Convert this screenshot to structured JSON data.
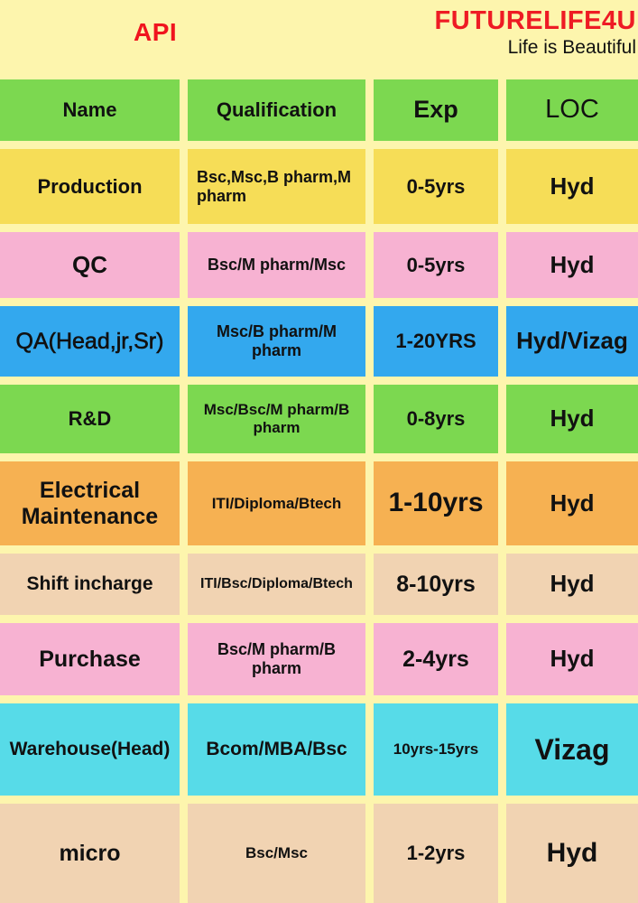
{
  "header": {
    "title": "API",
    "brand_name": "FUTURELIFE4U",
    "tagline": "Life is Beautiful"
  },
  "colors": {
    "green": "#7cd850",
    "yellow": "#f6dd57",
    "pink": "#f7b2d2",
    "blue": "#33a8ee",
    "orange": "#f6b152",
    "peach": "#f1d3b2",
    "cyan": "#57dbe8",
    "background": "#fdf5ad",
    "accent_red": "#ee1b24"
  },
  "table": {
    "columns": {
      "name": "Name",
      "qualification": "Qualification",
      "exp": "Exp",
      "loc": "LOC"
    },
    "rows": [
      {
        "name": "Production",
        "qualification": "Bsc,Msc,B pharm,M pharm",
        "exp": "0-5yrs",
        "loc": "Hyd"
      },
      {
        "name": "QC",
        "qualification": "Bsc/M pharm/Msc",
        "exp": "0-5yrs",
        "loc": "Hyd"
      },
      {
        "name": "QA(Head,jr,Sr)",
        "qualification": "Msc/B pharm/M pharm",
        "exp": "1-20YRS",
        "loc": "Hyd/Vizag"
      },
      {
        "name": "R&D",
        "qualification": "Msc/Bsc/M pharm/B pharm",
        "exp": "0-8yrs",
        "loc": "Hyd"
      },
      {
        "name": "Electrical Maintenance",
        "qualification": "ITI/Diploma/Btech",
        "exp": "1-10yrs",
        "loc": "Hyd"
      },
      {
        "name": "Shift incharge",
        "qualification": "ITI/Bsc/Diploma/Btech",
        "exp": "8-10yrs",
        "loc": "Hyd"
      },
      {
        "name": "Purchase",
        "qualification": "Bsc/M pharm/B pharm",
        "exp": "2-4yrs",
        "loc": "Hyd"
      },
      {
        "name": "Warehouse(Head)",
        "qualification": "Bcom/MBA/Bsc",
        "exp": "10yrs-15yrs",
        "loc": "Vizag"
      },
      {
        "name": "micro",
        "qualification": "Bsc/Msc",
        "exp": "1-2yrs",
        "loc": "Hyd"
      }
    ]
  }
}
